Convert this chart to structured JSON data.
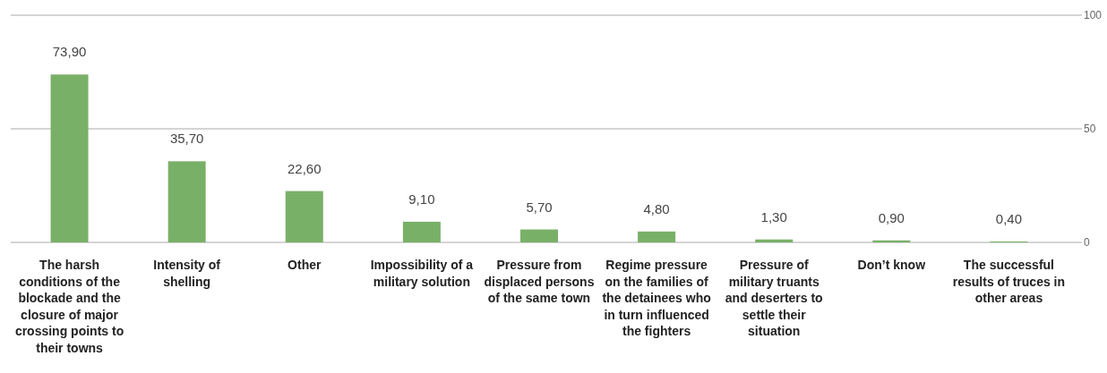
{
  "chart_data": {
    "type": "bar",
    "categories": [
      "The harsh conditions of the blockade and the closure of major crossing points to their towns",
      "Intensity of shelling",
      "Other",
      "Impossibility of a military solution",
      "Pressure from displaced persons of the same town",
      "Regime pressure on the families of the detainees who in turn influenced the fighters",
      "Pressure of military truants and deserters to settle their situation",
      "Don’t know",
      "The successful results of truces in other areas"
    ],
    "values": [
      73.9,
      35.7,
      22.6,
      9.1,
      5.7,
      4.8,
      1.3,
      0.9,
      0.4
    ],
    "value_labels": [
      "73,90",
      "35,70",
      "22,60",
      "9,10",
      "5,70",
      "4,80",
      "1,30",
      "0,90",
      "0,40"
    ],
    "color": "#79b068",
    "ylim": [
      0,
      100
    ],
    "yticks": [
      0,
      50,
      100
    ],
    "grid": "y"
  }
}
